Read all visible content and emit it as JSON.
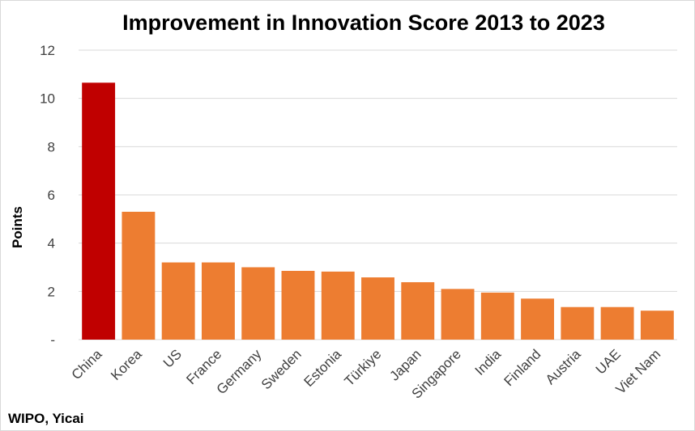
{
  "chart_data": {
    "type": "bar",
    "title": "Improvement in Innovation Score 2013 to 2023",
    "ylabel": "Points",
    "xlabel": "",
    "ylim": [
      0,
      12
    ],
    "yticks": [
      0,
      2,
      4,
      6,
      8,
      10,
      12
    ],
    "ytick_labels": [
      "-",
      "2",
      "4",
      "6",
      "8",
      "10",
      "12"
    ],
    "grid": true,
    "legend": "none",
    "categories": [
      "China",
      "Korea",
      "US",
      "France",
      "Germany",
      "Sweden",
      "Estonia",
      "Türkiye",
      "Japan",
      "Singapore",
      "India",
      "Finland",
      "Austria",
      "UAE",
      "Viet Nam"
    ],
    "values": [
      10.65,
      5.3,
      3.2,
      3.2,
      3.0,
      2.85,
      2.82,
      2.58,
      2.38,
      2.1,
      1.95,
      1.7,
      1.35,
      1.35,
      1.2
    ],
    "highlight_color": "#C00000",
    "bar_color": "#ED7D31",
    "highlight_category": "China"
  },
  "source": "WIPO, Yicai"
}
